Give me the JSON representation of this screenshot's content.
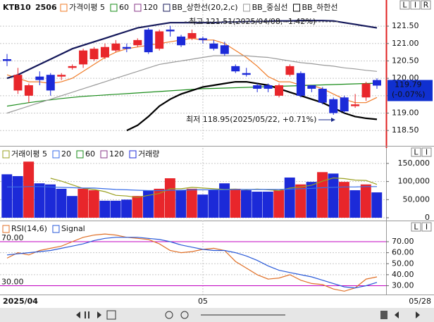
{
  "chart_data": [
    {
      "type": "candlestick",
      "symbol": "KTB10",
      "contract": "2506",
      "categories": [
        "2025/04",
        null,
        null,
        null,
        null,
        null,
        null,
        null,
        null,
        null,
        null,
        null,
        null,
        null,
        null,
        null,
        null,
        null,
        "05",
        null,
        null,
        null,
        null,
        null,
        null,
        null,
        null,
        null,
        null,
        null,
        null,
        null,
        null,
        null,
        "05/28"
      ],
      "open": [
        120.55,
        119.65,
        119.5,
        120.05,
        120.1,
        120.05,
        120.3,
        120.4,
        120.55,
        120.6,
        120.8,
        120.9,
        120.95,
        121.4,
        120.85,
        121.4,
        121.2,
        121.15,
        121.15,
        121.0,
        120.95,
        120.35,
        120.15,
        119.8,
        119.8,
        119.5,
        120.1,
        120.15,
        119.8,
        119.7,
        119.4,
        119.45,
        119.2,
        119.45,
        119.95
      ],
      "high": [
        120.7,
        120.3,
        119.85,
        120.2,
        120.15,
        120.15,
        120.4,
        120.85,
        120.9,
        121.0,
        121.1,
        121.0,
        121.15,
        121.45,
        121.4,
        121.51,
        121.25,
        121.4,
        121.2,
        121.1,
        121.05,
        120.4,
        120.3,
        119.85,
        119.85,
        119.85,
        120.4,
        120.2,
        119.8,
        119.75,
        119.45,
        119.5,
        119.55,
        119.9,
        120.0
      ],
      "low": [
        120.35,
        119.55,
        119.3,
        119.8,
        119.5,
        119.95,
        120.25,
        120.3,
        120.5,
        120.55,
        120.75,
        120.75,
        120.9,
        120.7,
        120.8,
        121.2,
        120.9,
        121.1,
        121.0,
        120.8,
        120.65,
        120.15,
        120.05,
        119.6,
        119.6,
        119.45,
        120.05,
        119.45,
        119.6,
        119.25,
        118.95,
        119.0,
        119.15,
        119.35,
        119.7
      ],
      "close": [
        120.5,
        120.1,
        119.8,
        119.95,
        119.65,
        120.1,
        120.35,
        120.8,
        120.85,
        120.9,
        121.0,
        120.85,
        121.1,
        120.75,
        121.35,
        121.35,
        120.95,
        121.3,
        121.1,
        120.85,
        120.7,
        120.2,
        120.1,
        119.7,
        119.7,
        119.8,
        120.35,
        119.5,
        119.7,
        119.3,
        119.0,
        119.05,
        119.25,
        119.85,
        119.79
      ],
      "up_color": "#e8262b",
      "down_color": "#1c2ad8",
      "series": [
        {
          "name": "가격이평 5",
          "color": "#f07c28",
          "values": [
            120.1,
            120.0,
            119.9,
            119.9,
            119.85,
            119.9,
            120.0,
            120.2,
            120.4,
            120.6,
            120.75,
            120.85,
            120.9,
            120.95,
            121.0,
            121.05,
            121.1,
            121.15,
            121.1,
            121.1,
            121.0,
            120.8,
            120.6,
            120.35,
            120.05,
            119.9,
            119.9,
            119.8,
            119.8,
            119.7,
            119.55,
            119.4,
            119.3,
            119.3,
            119.45
          ]
        },
        {
          "name": "60",
          "color": "#1a8c1a",
          "values": [
            119.2,
            119.25,
            119.3,
            119.34,
            119.38,
            119.42,
            119.45,
            119.48,
            119.5,
            119.52,
            119.54,
            119.56,
            119.58,
            119.6,
            119.62,
            119.64,
            119.66,
            119.68,
            119.7,
            119.71,
            119.72,
            119.73,
            119.74,
            119.75,
            119.76,
            119.77,
            119.78,
            119.79,
            119.8,
            119.81,
            119.82,
            119.83,
            119.84,
            119.85,
            119.86
          ]
        },
        {
          "name": "120",
          "color": "#8a3a8a",
          "values": [
            null,
            null,
            null,
            null,
            null,
            null,
            null,
            null,
            null,
            null,
            null,
            null,
            null,
            null,
            null,
            null,
            null,
            null,
            null,
            null,
            null,
            null,
            null,
            null,
            null,
            null,
            null,
            null,
            null,
            null,
            null,
            null,
            null,
            null,
            null
          ]
        },
        {
          "name": "BB_상한선(20,2,c)",
          "color": "#14185a",
          "values": [
            120.0,
            120.1,
            120.25,
            120.4,
            120.55,
            120.7,
            120.85,
            120.95,
            121.05,
            121.15,
            121.25,
            121.35,
            121.45,
            121.5,
            121.55,
            121.6,
            121.6,
            121.6,
            121.6,
            121.6,
            121.62,
            121.62,
            121.63,
            121.63,
            121.64,
            121.65,
            121.65,
            121.66,
            121.66,
            121.66,
            121.65,
            121.6,
            121.55,
            121.5,
            121.45
          ]
        },
        {
          "name": "BB_중심선",
          "color": "#9a9a9a",
          "values": [
            119.0,
            119.1,
            119.2,
            119.3,
            119.4,
            119.5,
            119.6,
            119.7,
            119.8,
            119.9,
            120.0,
            120.1,
            120.2,
            120.3,
            120.4,
            120.45,
            120.5,
            120.55,
            120.6,
            120.65,
            120.65,
            120.65,
            120.65,
            120.62,
            120.6,
            120.55,
            120.5,
            120.45,
            120.42,
            120.38,
            120.35,
            120.3,
            120.27,
            120.23,
            120.2
          ]
        },
        {
          "name": "BB_하한선",
          "color": "#000000",
          "values": [
            null,
            null,
            null,
            null,
            null,
            null,
            null,
            null,
            null,
            null,
            null,
            118.5,
            118.65,
            118.9,
            119.2,
            119.4,
            119.55,
            119.65,
            119.75,
            119.8,
            119.85,
            119.9,
            119.9,
            119.85,
            119.8,
            119.7,
            119.6,
            119.5,
            119.4,
            119.3,
            119.15,
            119.0,
            118.9,
            118.85,
            118.82
          ]
        }
      ],
      "ylim": [
        118.2,
        122.15
      ],
      "yticks": [
        {
          "value": 118.5,
          "label": "118.50"
        },
        {
          "value": 119,
          "label": "119.00"
        },
        {
          "value": 119.5,
          "label": "119.50"
        },
        {
          "value": 120,
          "label": "120.00"
        },
        {
          "value": 120.5,
          "label": "120.50"
        },
        {
          "value": 121,
          "label": "121.00"
        },
        {
          "value": 121.5,
          "label": "121.50"
        }
      ],
      "grid": true,
      "annotations": [
        "최고 121.51(2025/04/08, -1.42%)",
        "최저 118.95(2025/05/22, +0.71%)"
      ],
      "last_price": {
        "value": 119.79,
        "label": "119.79",
        "change": "(-0.07%)",
        "color": "#1030d0"
      }
    },
    {
      "type": "bar",
      "series": [
        {
          "name": "거래이평 5",
          "type": "line",
          "color": "#9aa020",
          "values": [
            null,
            null,
            null,
            null,
            109000,
            101000,
            91000,
            81000,
            78000,
            72000,
            62000,
            60000,
            56000,
            62000,
            67000,
            80000,
            80000,
            84000,
            82000,
            80000,
            78000,
            79000,
            77000,
            79000,
            77000,
            75000,
            82000,
            85000,
            90000,
            101000,
            110000,
            108000,
            104000,
            103000,
            92000
          ]
        },
        {
          "name": "20",
          "type": "line",
          "color": "#3a6ee8",
          "values": [
            85000,
            85000,
            86000,
            86000,
            85000,
            84000,
            83000,
            82000,
            82000,
            80000,
            78000,
            77000,
            76000,
            75000,
            75000,
            76000,
            76000,
            77000,
            77000,
            77000,
            77000,
            78000,
            78000,
            78000,
            78000,
            78000,
            79000,
            80000,
            81000,
            83000,
            84000,
            85000,
            85000,
            86000,
            86000
          ]
        },
        {
          "name": "60",
          "type": "line",
          "color": "#1a8c1a",
          "values": [
            null,
            null,
            null,
            null,
            null,
            null,
            null,
            null,
            null,
            null,
            null,
            null,
            null,
            null,
            null,
            null,
            null,
            null,
            null,
            null,
            null,
            null,
            null,
            null,
            null,
            null,
            null,
            null,
            null,
            null,
            null,
            null,
            null,
            null,
            null
          ]
        },
        {
          "name": "120",
          "type": "line",
          "color": "#8a3a8a",
          "values": [
            null,
            null,
            null,
            null,
            null,
            null,
            null,
            null,
            null,
            null,
            null,
            null,
            null,
            null,
            null,
            null,
            null,
            null,
            null,
            null,
            null,
            null,
            null,
            null,
            null,
            null,
            null,
            null,
            null,
            null,
            null,
            null,
            null,
            null,
            null
          ]
        },
        {
          "name": "거래량",
          "type": "bar",
          "color": "#1c2ad8",
          "values": [
            120000,
            115000,
            155000,
            95000,
            92000,
            80000,
            60000,
            80000,
            76000,
            47000,
            47000,
            50000,
            60000,
            76000,
            80000,
            109000,
            76000,
            80000,
            64000,
            76000,
            95000,
            80000,
            76000,
            72000,
            72000,
            76000,
            111000,
            92000,
            99000,
            126000,
            122000,
            99000,
            76000,
            92000,
            70000
          ],
          "colors": [
            "#1c2ad8",
            "#1c2ad8",
            "#e8262b",
            "#1c2ad8",
            "#1c2ad8",
            "#1c2ad8",
            "#1c2ad8",
            "#e8262b",
            "#e8262b",
            "#1c2ad8",
            "#1c2ad8",
            "#1c2ad8",
            "#e8262b",
            "#1c2ad8",
            "#e8262b",
            "#e8262b",
            "#1c2ad8",
            "#e8262b",
            "#1c2ad8",
            "#1c2ad8",
            "#1c2ad8",
            "#e8262b",
            "#1c2ad8",
            "#1c2ad8",
            "#1c2ad8",
            "#e8262b",
            "#1c2ad8",
            "#e8262b",
            "#1c2ad8",
            "#e8262b",
            "#1c2ad8",
            "#e8262b",
            "#1c2ad8",
            "#e8262b",
            "#1c2ad8"
          ]
        }
      ],
      "ylim": [
        0,
        183000
      ],
      "yticks": [
        0,
        {
          "value": 50000,
          "label": "50,000"
        },
        {
          "value": 100000,
          "label": "100,000"
        },
        {
          "value": 150000,
          "label": "150,000"
        }
      ],
      "grid": true
    },
    {
      "type": "line",
      "series": [
        {
          "name": "RSI(14,6)",
          "color": "#e07028",
          "values": [
            55,
            60,
            58,
            62,
            64,
            66,
            70,
            74,
            76,
            77,
            76,
            74,
            73,
            72,
            68,
            62,
            60,
            61,
            63,
            64,
            62,
            52,
            46,
            40,
            36,
            37,
            40,
            35,
            32,
            31,
            27,
            25,
            28,
            36,
            38
          ]
        },
        {
          "name": "Signal",
          "color": "#2a5ad8",
          "values": [
            58,
            59,
            60,
            61,
            62,
            64,
            66,
            68,
            71,
            73,
            74,
            74,
            74,
            73,
            72,
            70,
            67,
            65,
            63,
            62,
            62,
            60,
            57,
            53,
            48,
            44,
            42,
            40,
            38,
            35,
            32,
            29,
            28,
            30,
            33
          ]
        }
      ],
      "levels": [
        {
          "value": 70,
          "label": "70.00"
        },
        {
          "value": 30,
          "label": "30.00"
        }
      ],
      "level_color": "#c000c0",
      "ylim": [
        22,
        86
      ],
      "yticks": [
        {
          "value": 30,
          "label": "30.00"
        },
        {
          "value": 40,
          "label": "40.00"
        },
        {
          "value": 50,
          "label": "50.00"
        },
        {
          "value": 60,
          "label": "60.00"
        },
        {
          "value": 70,
          "label": "70.00"
        }
      ],
      "grid": true
    }
  ],
  "ui": {
    "price_buttons": [
      "L",
      "I",
      "R"
    ],
    "volume_buttons": [
      "L",
      "I"
    ],
    "rsi_buttons": [
      "L",
      "I"
    ]
  }
}
